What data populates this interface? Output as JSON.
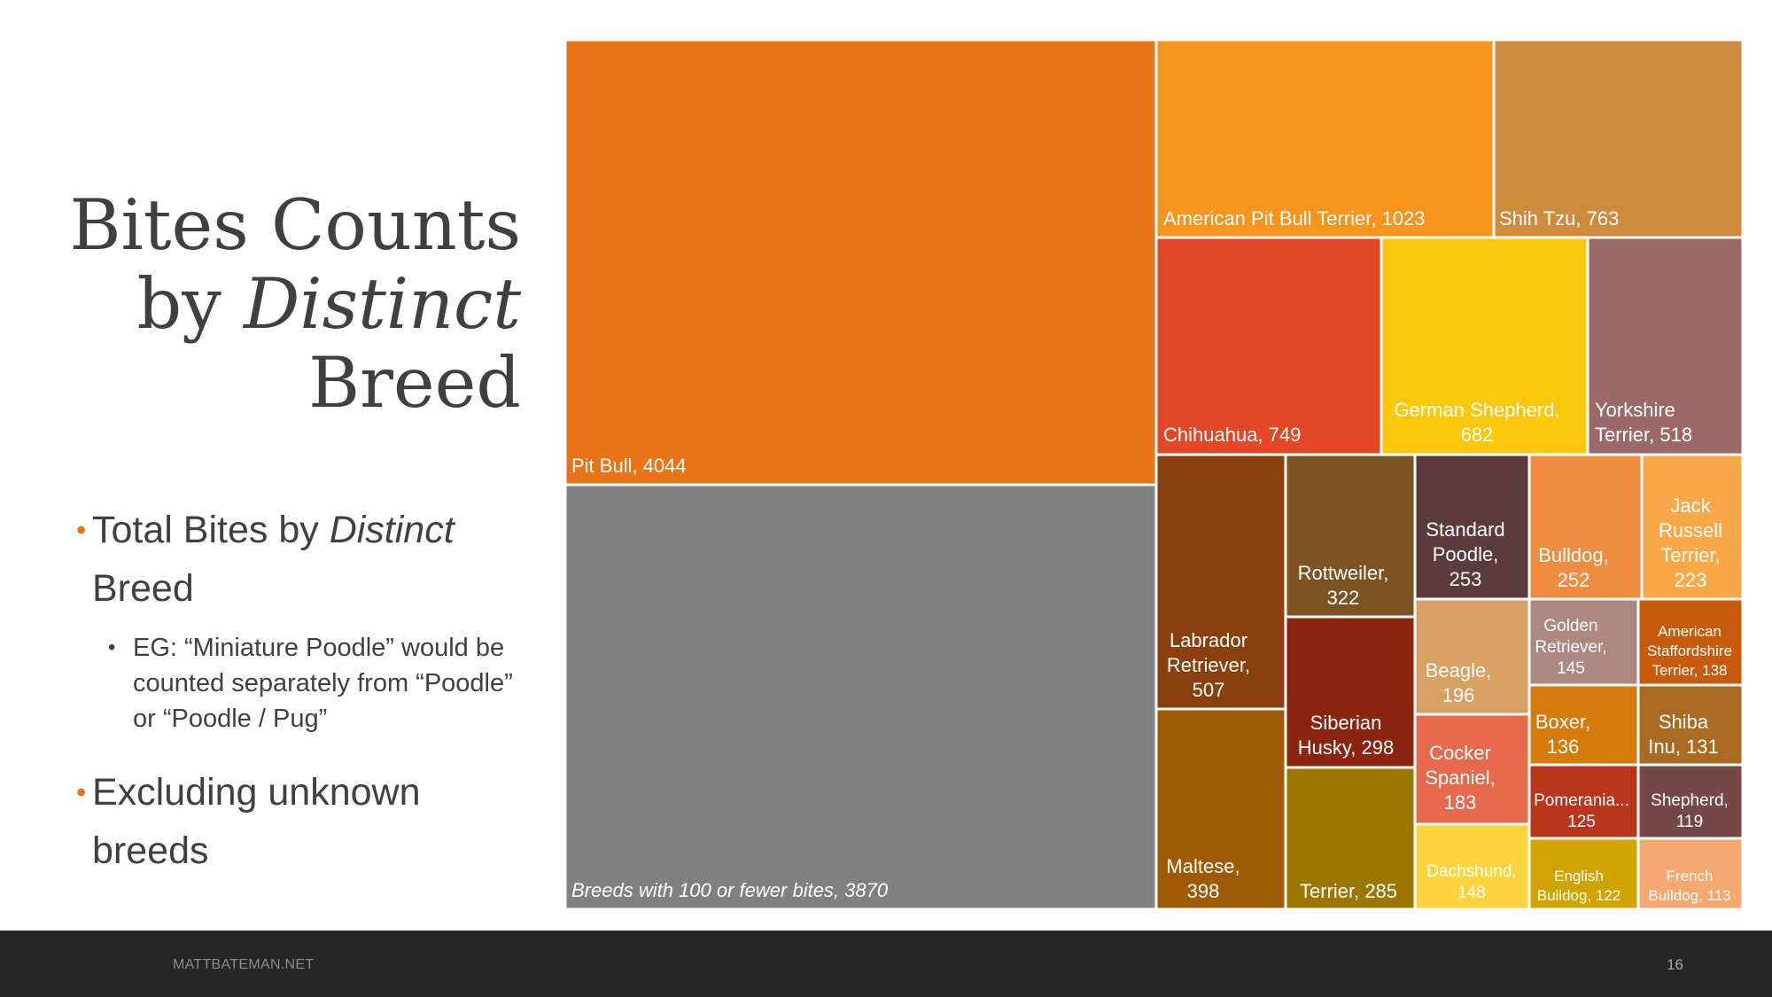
{
  "slide": {
    "title_line1": "Bites Counts",
    "title_line2_prefix": "by ",
    "title_line2_italic": "Distinct",
    "title_line3": "Breed",
    "bullet1_prefix": "Total Bites by ",
    "bullet1_italic": "Distinct",
    "bullet1_suffix": "Breed",
    "sub_bullet": "EG: “Miniature Poodle” would be counted separately from “Poodle” or “Poodle / Pug”",
    "bullet2": "Excluding unknown breeds",
    "bullet_char": "•",
    "sub_bullet_char": "•",
    "accent_color": "#E97317"
  },
  "footer": {
    "site": "MATTBATEMAN.NET",
    "page_number": "16"
  },
  "chart_data": {
    "type": "treemap",
    "title": "",
    "tiles": [
      {
        "name": "Pit Bull",
        "value": 4044,
        "label": [
          "Pit Bull, 4044"
        ],
        "color": "#E97317"
      },
      {
        "name": "Breeds with 100 or fewer bites",
        "value": 3870,
        "label": [
          "Breeds with 100 or fewer bites, 3870"
        ],
        "italic": true,
        "color": "#808080"
      },
      {
        "name": "American Pit Bull Terrier",
        "value": 1023,
        "label": [
          "American Pit Bull Terrier, 1023"
        ],
        "color": "#F7941E"
      },
      {
        "name": "Shih Tzu",
        "value": 763,
        "label": [
          "Shih Tzu, 763"
        ],
        "color": "#CE8B3E"
      },
      {
        "name": "Chihuahua",
        "value": 749,
        "label": [
          "Chihuahua, 749"
        ],
        "color": "#E34725"
      },
      {
        "name": "German Shepherd",
        "value": 682,
        "label": [
          "German Shepherd,",
          "682"
        ],
        "color": "#FDC70C"
      },
      {
        "name": "Yorkshire Terrier",
        "value": 518,
        "label": [
          "Yorkshire",
          "Terrier, 518"
        ],
        "color": "#9C6868"
      },
      {
        "name": "Labrador Retriever",
        "value": 507,
        "label": [
          "Labrador",
          "Retriever,",
          "507"
        ],
        "color": "#8A400C"
      },
      {
        "name": "Maltese",
        "value": 398,
        "label": [
          "Maltese,",
          "398"
        ],
        "color": "#A05A06"
      },
      {
        "name": "Rottweiler",
        "value": 322,
        "label": [
          "Rottweiler,",
          "322"
        ],
        "color": "#7E5322"
      },
      {
        "name": "Siberian Husky",
        "value": 298,
        "label": [
          "Siberian",
          "Husky, 298"
        ],
        "color": "#8B2510"
      },
      {
        "name": "Terrier",
        "value": 285,
        "label": [
          "Terrier, 285"
        ],
        "color": "#9B7700"
      },
      {
        "name": "Standard Poodle",
        "value": 253,
        "label": [
          "Standard",
          "Poodle,",
          "253"
        ],
        "color": "#5C3B3E"
      },
      {
        "name": "Bulldog",
        "value": 252,
        "label": [
          "Bulldog,",
          "252"
        ],
        "color": "#EF8C40"
      },
      {
        "name": "Jack Russell Terrier",
        "value": 223,
        "label": [
          "Jack",
          "Russell",
          "Terrier,",
          "223"
        ],
        "color": "#F9A848"
      },
      {
        "name": "Beagle",
        "value": 196,
        "label": [
          "Beagle,",
          "196"
        ],
        "color": "#D9A064"
      },
      {
        "name": "Cocker Spaniel",
        "value": 183,
        "label": [
          "Cocker",
          "Spaniel,",
          "183"
        ],
        "color": "#E86A4D"
      },
      {
        "name": "Dachshund",
        "value": 148,
        "label": [
          "Dachshund,",
          "148"
        ],
        "color": "#FDD43C"
      },
      {
        "name": "Golden Retriever",
        "value": 145,
        "label": [
          "Golden",
          "Retriever,",
          "145"
        ],
        "color": "#AD8882"
      },
      {
        "name": "American Staffordshire Terrier",
        "value": 138,
        "label": [
          "American",
          "Staffordshire",
          "Terrier, 138"
        ],
        "color": "#C65B0C"
      },
      {
        "name": "Boxer",
        "value": 136,
        "label": [
          "Boxer,",
          "136"
        ],
        "color": "#D57A0B"
      },
      {
        "name": "Shiba Inu",
        "value": 131,
        "label": [
          "Shiba",
          "Inu, 131"
        ],
        "color": "#AA6A22"
      },
      {
        "name": "Pomerania...",
        "value": 125,
        "label": [
          "Pomerania...",
          "125"
        ],
        "color": "#B9361C"
      },
      {
        "name": "Shepherd",
        "value": 119,
        "label": [
          "Shepherd,",
          "119"
        ],
        "color": "#754747"
      },
      {
        "name": "English Bulldog",
        "value": 122,
        "label": [
          "English",
          "Bulldog, 122"
        ],
        "color": "#D0A400"
      },
      {
        "name": "French Bulldog",
        "value": 113,
        "label": [
          "French",
          "Bulldog, 113"
        ],
        "color": "#F4A86F"
      }
    ]
  }
}
